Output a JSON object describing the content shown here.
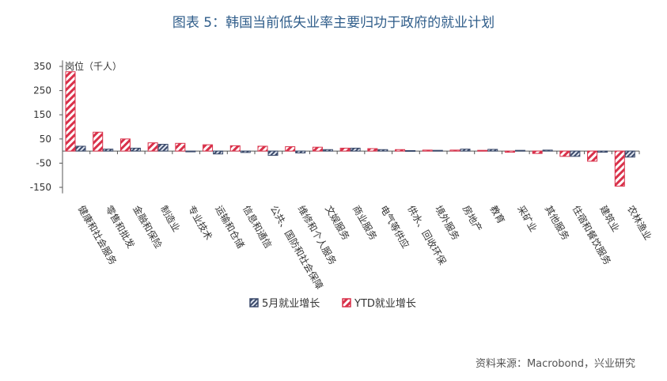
{
  "page": {
    "title": "图表 5：韩国当前低失业率主要归功于政府的就业计划",
    "source": "资料来源：Macrobond，兴业研究"
  },
  "chart_data": {
    "type": "bar",
    "title": "图表 5：韩国当前低失业率主要归功于政府的就业计划",
    "ylabel": "岗位（千人）",
    "xlabel": "",
    "ylim": [
      -175,
      375
    ],
    "yticks": [
      350,
      250,
      150,
      50,
      -50,
      -150
    ],
    "grid": false,
    "legend_position": "bottom-center",
    "categories": [
      "健康和社会服务",
      "零售和批发",
      "金融和保险",
      "制造业",
      "专业技术",
      "运输和仓储",
      "信息和通信",
      "公共、国防和社会保障",
      "维修和个人服务",
      "文娱服务",
      "商业服务",
      "电气等供应",
      "供水、回收环保",
      "境外服务",
      "房地产",
      "教育",
      "采矿业",
      "其他服务",
      "住宿和餐饮服务",
      "建筑业",
      "农林渔业"
    ],
    "series": [
      {
        "name": "5月就业增长",
        "color": "#3b4a6b",
        "pattern": "hatch-dark",
        "values": [
          20,
          8,
          12,
          28,
          -3,
          -12,
          -6,
          -18,
          -8,
          6,
          12,
          6,
          2,
          3,
          8,
          7,
          3,
          4,
          -22,
          -5,
          -25
        ]
      },
      {
        "name": "YTD就业增长",
        "color": "#d9314a",
        "pattern": "hatch-red",
        "values": [
          328,
          78,
          50,
          34,
          32,
          26,
          22,
          20,
          18,
          16,
          12,
          10,
          6,
          4,
          4,
          3,
          -5,
          -10,
          -22,
          -42,
          -145
        ]
      }
    ]
  }
}
